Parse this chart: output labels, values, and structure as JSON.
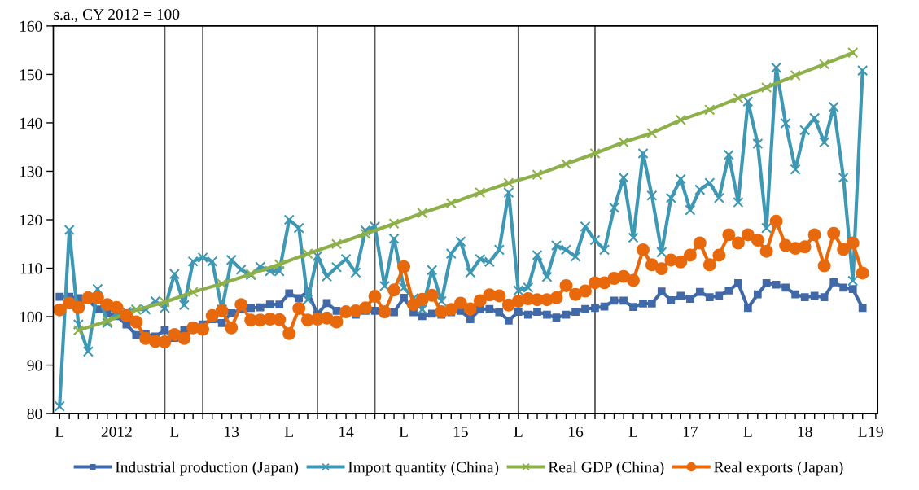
{
  "chart_data": {
    "type": "line",
    "ylabel": "s.a., CY 2012 = 100",
    "x": [
      "2012-01",
      "2012-02",
      "2012-03",
      "2012-04",
      "2012-05",
      "2012-06",
      "2012-07",
      "2012-08",
      "2012-09",
      "2012-10",
      "2012-11",
      "2012-12",
      "2013-01",
      "2013-02",
      "2013-03",
      "2013-04",
      "2013-05",
      "2013-06",
      "2013-07",
      "2013-08",
      "2013-09",
      "2013-10",
      "2013-11",
      "2013-12",
      "2014-01",
      "2014-02",
      "2014-03",
      "2014-04",
      "2014-05",
      "2014-06",
      "2014-07",
      "2014-08",
      "2014-09",
      "2014-10",
      "2014-11",
      "2014-12",
      "2015-01",
      "2015-02",
      "2015-03",
      "2015-04",
      "2015-05",
      "2015-06",
      "2015-07",
      "2015-08",
      "2015-09",
      "2015-10",
      "2015-11",
      "2015-12",
      "2016-01",
      "2016-02",
      "2016-03",
      "2016-04",
      "2016-05",
      "2016-06",
      "2016-07",
      "2016-08",
      "2016-09",
      "2016-10",
      "2016-11",
      "2016-12",
      "2017-01",
      "2017-02",
      "2017-03",
      "2017-04",
      "2017-05",
      "2017-06",
      "2017-07",
      "2017-08",
      "2017-09",
      "2017-10",
      "2017-11",
      "2017-12",
      "2018-01",
      "2018-02",
      "2018-03",
      "2018-04",
      "2018-05",
      "2018-06",
      "2018-07",
      "2018-08",
      "2018-09",
      "2018-10",
      "2018-11",
      "2018-12",
      "2019-01"
    ],
    "series": [
      {
        "name": "Industrial production (Japan)",
        "color": "#4169a8",
        "marker": "square",
        "values": [
          104.1,
          104.1,
          103.8,
          103.5,
          101.5,
          100.7,
          100.1,
          98.4,
          96.2,
          96.5,
          95.9,
          97.2,
          95.6,
          97.2,
          98.1,
          98.4,
          99.5,
          98.7,
          100.7,
          101.5,
          101.8,
          101.9,
          102.5,
          102.5,
          104.8,
          103.8,
          105.2,
          100.5,
          102.8,
          101.2,
          101.1,
          100.4,
          101.2,
          101.2,
          100.6,
          100.9,
          103.9,
          100.9,
          100.1,
          100.6,
          100.4,
          100.9,
          101.2,
          99.5,
          101.5,
          101.6,
          100.9,
          99.2,
          101.0,
          100.4,
          101.0,
          100.4,
          99.8,
          100.4,
          101.0,
          101.6,
          101.8,
          102.1,
          103.3,
          103.3,
          102.0,
          102.7,
          102.7,
          105.2,
          103.4,
          104.3,
          103.7,
          105.1,
          104.0,
          104.3,
          105.4,
          106.9,
          101.8,
          104.6,
          106.9,
          106.6,
          106.0,
          104.6,
          104.0,
          104.3,
          104.0,
          107.1,
          106.0,
          105.7,
          101.8
        ]
      },
      {
        "name": "Import quantity (China)",
        "color": "#3f98b3",
        "marker": "cross",
        "values": [
          81.5,
          117.9,
          98.4,
          92.8,
          105.7,
          98.7,
          100.7,
          101.0,
          101.5,
          101.5,
          103.2,
          101.8,
          108.8,
          102.4,
          111.4,
          112.2,
          111.4,
          101.5,
          111.7,
          109.7,
          108.6,
          110.3,
          109.4,
          109.4,
          120.0,
          118.3,
          103.5,
          112.5,
          108.3,
          110.2,
          111.9,
          109.1,
          117.8,
          118.6,
          106.3,
          116.1,
          106.0,
          103.8,
          101.5,
          109.6,
          103.2,
          113.0,
          115.5,
          109.1,
          111.9,
          111.3,
          113.8,
          125.6,
          105.4,
          106.0,
          112.7,
          108.2,
          114.7,
          113.8,
          112.4,
          118.6,
          115.8,
          113.8,
          122.5,
          128.7,
          116.3,
          133.7,
          125.0,
          113.3,
          124.5,
          128.4,
          122.0,
          126.2,
          127.6,
          124.5,
          133.4,
          123.6,
          144.4,
          135.7,
          118.3,
          151.4,
          139.9,
          130.4,
          138.5,
          141.0,
          136.0,
          143.3,
          128.7,
          107.4,
          150.8
        ]
      },
      {
        "name": "Real GDP (China)",
        "color": "#8db04a",
        "marker": "cross",
        "x": [
          "2012-03",
          "2012-06",
          "2012-09",
          "2012-12",
          "2013-03",
          "2013-06",
          "2013-09",
          "2013-12",
          "2014-03",
          "2014-06",
          "2014-09",
          "2014-12",
          "2015-03",
          "2015-06",
          "2015-09",
          "2015-12",
          "2016-03",
          "2016-06",
          "2016-09",
          "2016-12",
          "2017-03",
          "2017-06",
          "2017-09",
          "2017-12",
          "2018-03",
          "2018-06",
          "2018-09",
          "2018-12"
        ],
        "values": [
          97.2,
          99.1,
          101.4,
          103.0,
          105.1,
          106.8,
          108.8,
          110.8,
          113.0,
          115.0,
          117.1,
          119.2,
          121.4,
          123.4,
          125.6,
          127.6,
          129.3,
          131.5,
          133.7,
          136.0,
          137.9,
          140.6,
          142.7,
          145.1,
          147.3,
          149.8,
          152.1,
          154.5
        ]
      },
      {
        "name": "Real exports (Japan)",
        "color": "#e8690c",
        "marker": "circle",
        "values": [
          101.4,
          102.8,
          101.9,
          103.9,
          103.9,
          102.5,
          101.9,
          100.2,
          98.9,
          95.5,
          94.9,
          94.8,
          96.3,
          95.5,
          97.7,
          97.4,
          100.2,
          101.2,
          97.7,
          102.5,
          99.3,
          99.3,
          99.5,
          99.4,
          96.5,
          101.7,
          99.3,
          99.5,
          99.7,
          98.9,
          101.0,
          101.2,
          101.8,
          104.2,
          101.0,
          105.5,
          110.3,
          102.5,
          103.6,
          104.4,
          101.0,
          101.5,
          102.8,
          101.6,
          103.3,
          104.5,
          104.3,
          102.4,
          103.2,
          103.7,
          103.5,
          103.5,
          103.9,
          106.4,
          104.6,
          105.3,
          107.0,
          107.0,
          107.9,
          108.3,
          107.5,
          113.8,
          110.7,
          109.9,
          111.7,
          111.3,
          112.7,
          115.2,
          110.7,
          112.7,
          116.9,
          115.2,
          116.9,
          115.8,
          113.5,
          119.7,
          114.7,
          114.1,
          114.4,
          116.9,
          110.5,
          117.2,
          113.9,
          115.2,
          109.0
        ]
      }
    ],
    "xlim": [
      "2011-12-12",
      "2019-02-18"
    ],
    "xticks": [
      {
        "value": "2012-01",
        "label": "L"
      },
      {
        "value": "2012-02",
        "label": null
      },
      {
        "value": "2012-03",
        "label": null
      },
      {
        "value": "2012-04",
        "label": null
      },
      {
        "value": "2012-05",
        "label": null
      },
      {
        "value": "2012-06",
        "label": null
      },
      {
        "value": "2012-07",
        "label": "2012"
      },
      {
        "value": "2012-08",
        "label": null
      },
      {
        "value": "2012-09",
        "label": null
      },
      {
        "value": "2012-10",
        "label": null
      },
      {
        "value": "2012-11",
        "label": null
      },
      {
        "value": "2012-12",
        "label": null
      },
      {
        "value": "2013-01",
        "label": "L"
      },
      {
        "value": "2013-02",
        "label": null
      },
      {
        "value": "2013-03",
        "label": null
      },
      {
        "value": "2013-04",
        "label": null
      },
      {
        "value": "2013-05",
        "label": null
      },
      {
        "value": "2013-06",
        "label": null
      },
      {
        "value": "2013-07",
        "label": "13"
      },
      {
        "value": "2013-08",
        "label": null
      },
      {
        "value": "2013-09",
        "label": null
      },
      {
        "value": "2013-10",
        "label": null
      },
      {
        "value": "2013-11",
        "label": null
      },
      {
        "value": "2013-12",
        "label": null
      },
      {
        "value": "2014-01",
        "label": "L"
      },
      {
        "value": "2014-02",
        "label": null
      },
      {
        "value": "2014-03",
        "label": null
      },
      {
        "value": "2014-04",
        "label": null
      },
      {
        "value": "2014-05",
        "label": null
      },
      {
        "value": "2014-06",
        "label": null
      },
      {
        "value": "2014-07",
        "label": "14"
      },
      {
        "value": "2014-08",
        "label": null
      },
      {
        "value": "2014-09",
        "label": null
      },
      {
        "value": "2014-10",
        "label": null
      },
      {
        "value": "2014-11",
        "label": null
      },
      {
        "value": "2014-12",
        "label": null
      },
      {
        "value": "2015-01",
        "label": "L"
      },
      {
        "value": "2015-02",
        "label": null
      },
      {
        "value": "2015-03",
        "label": null
      },
      {
        "value": "2015-04",
        "label": null
      },
      {
        "value": "2015-05",
        "label": null
      },
      {
        "value": "2015-06",
        "label": null
      },
      {
        "value": "2015-07",
        "label": "15"
      },
      {
        "value": "2015-08",
        "label": null
      },
      {
        "value": "2015-09",
        "label": null
      },
      {
        "value": "2015-10",
        "label": null
      },
      {
        "value": "2015-11",
        "label": null
      },
      {
        "value": "2015-12",
        "label": null
      },
      {
        "value": "2016-01",
        "label": "L"
      },
      {
        "value": "2016-02",
        "label": null
      },
      {
        "value": "2016-03",
        "label": null
      },
      {
        "value": "2016-04",
        "label": null
      },
      {
        "value": "2016-05",
        "label": null
      },
      {
        "value": "2016-06",
        "label": null
      },
      {
        "value": "2016-07",
        "label": "16"
      },
      {
        "value": "2016-08",
        "label": null
      },
      {
        "value": "2016-09",
        "label": null
      },
      {
        "value": "2016-10",
        "label": null
      },
      {
        "value": "2016-11",
        "label": null
      },
      {
        "value": "2016-12",
        "label": null
      },
      {
        "value": "2017-01",
        "label": "L"
      },
      {
        "value": "2017-02",
        "label": null
      },
      {
        "value": "2017-03",
        "label": null
      },
      {
        "value": "2017-04",
        "label": null
      },
      {
        "value": "2017-05",
        "label": null
      },
      {
        "value": "2017-06",
        "label": null
      },
      {
        "value": "2017-07",
        "label": "17"
      },
      {
        "value": "2017-08",
        "label": null
      },
      {
        "value": "2017-09",
        "label": null
      },
      {
        "value": "2017-10",
        "label": null
      },
      {
        "value": "2017-11",
        "label": null
      },
      {
        "value": "2017-12",
        "label": null
      },
      {
        "value": "2018-01",
        "label": "L"
      },
      {
        "value": "2018-02",
        "label": null
      },
      {
        "value": "2018-03",
        "label": null
      },
      {
        "value": "2018-04",
        "label": null
      },
      {
        "value": "2018-05",
        "label": null
      },
      {
        "value": "2018-06",
        "label": null
      },
      {
        "value": "2018-07",
        "label": "18"
      },
      {
        "value": "2018-08",
        "label": null
      },
      {
        "value": "2018-09",
        "label": null
      },
      {
        "value": "2018-10",
        "label": null
      },
      {
        "value": "2018-11",
        "label": null
      },
      {
        "value": "2018-12",
        "label": null
      },
      {
        "value": "2019-01",
        "label": "L"
      },
      {
        "value": "2019-02-12",
        "label": "19"
      }
    ],
    "ylim": [
      80,
      160
    ],
    "yticks": [
      80,
      90,
      100,
      110,
      120,
      130,
      140,
      150,
      160
    ],
    "ref_lines": [
      {
        "axis": "x",
        "value": "2012-12",
        "color": "#595959"
      },
      {
        "axis": "x",
        "value": "2013-04",
        "color": "#595959"
      },
      {
        "axis": "x",
        "value": "2014-04",
        "color": "#595959"
      },
      {
        "axis": "x",
        "value": "2014-10",
        "color": "#595959"
      },
      {
        "axis": "x",
        "value": "2016-01",
        "color": "#595959"
      },
      {
        "axis": "x",
        "value": "2016-09",
        "color": "#595959"
      }
    ],
    "grid": false,
    "legend": "bottom",
    "line_style": "solid"
  }
}
